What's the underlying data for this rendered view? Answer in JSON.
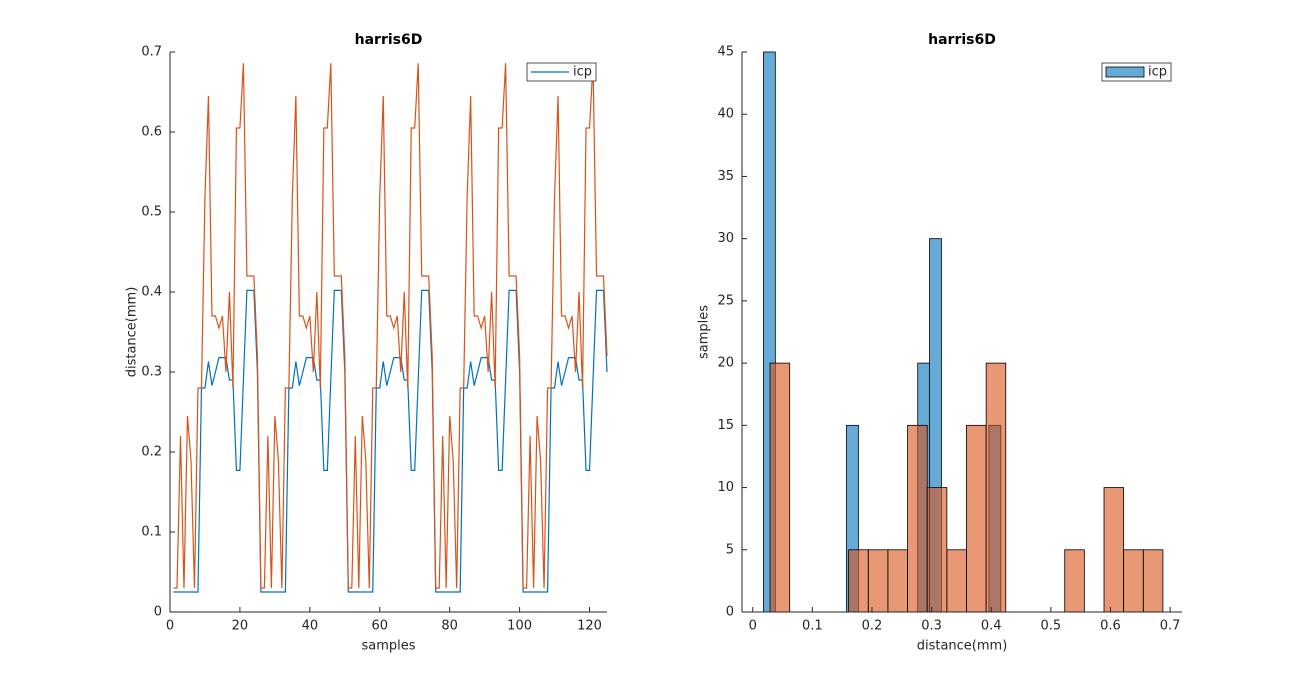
{
  "chart_data": [
    {
      "type": "line",
      "title": "harris6D",
      "x_label": "samples",
      "y_label": "distance(mm)",
      "xlim": [
        0,
        125
      ],
      "xticks": [
        0,
        20,
        40,
        60,
        80,
        100,
        120
      ],
      "ylim": [
        0,
        0.7
      ],
      "yticks": [
        0,
        0.1,
        0.2,
        0.3,
        0.4,
        0.5,
        0.6,
        0.7
      ],
      "legend": "top-right",
      "x": [
        1,
        2,
        3,
        4,
        5,
        6,
        7,
        8,
        9,
        10,
        11,
        12,
        13,
        14,
        15,
        16,
        17,
        18,
        19,
        20,
        21,
        22,
        23,
        24,
        25,
        26,
        27,
        28,
        29,
        30,
        31,
        32,
        33,
        34,
        35,
        36,
        37,
        38,
        39,
        40,
        41,
        42,
        43,
        44,
        45,
        46,
        47,
        48,
        49,
        50,
        51,
        52,
        53,
        54,
        55,
        56,
        57,
        58,
        59,
        60,
        61,
        62,
        63,
        64,
        65,
        66,
        67,
        68,
        69,
        70,
        71,
        72,
        73,
        74,
        75,
        76,
        77,
        78,
        79,
        80,
        81,
        82,
        83,
        84,
        85,
        86,
        87,
        88,
        89,
        90,
        91,
        92,
        93,
        94,
        95,
        96,
        97,
        98,
        99,
        100,
        101,
        102,
        103,
        104,
        105,
        106,
        107,
        108,
        109,
        110,
        111,
        112,
        113,
        114,
        115,
        116,
        117,
        118,
        119,
        120,
        121,
        122,
        123,
        124,
        125
      ],
      "series": [
        {
          "name": "icp",
          "color": "#0072bd",
          "values": [
            0.025,
            0.025,
            0.025,
            0.025,
            0.025,
            0.025,
            0.025,
            0.025,
            0.28,
            0.28,
            0.313,
            0.283,
            0.3,
            0.318,
            0.318,
            0.318,
            0.29,
            0.29,
            0.177,
            0.177,
            0.29,
            0.402,
            0.402,
            0.402,
            0.3,
            0.025,
            0.025,
            0.025,
            0.025,
            0.025,
            0.025,
            0.025,
            0.025,
            0.28,
            0.28,
            0.313,
            0.283,
            0.3,
            0.318,
            0.318,
            0.318,
            0.29,
            0.29,
            0.177,
            0.177,
            0.29,
            0.402,
            0.402,
            0.402,
            0.3,
            0.025,
            0.025,
            0.025,
            0.025,
            0.025,
            0.025,
            0.025,
            0.025,
            0.28,
            0.28,
            0.313,
            0.283,
            0.3,
            0.318,
            0.318,
            0.318,
            0.29,
            0.29,
            0.177,
            0.177,
            0.29,
            0.402,
            0.402,
            0.402,
            0.3,
            0.025,
            0.025,
            0.025,
            0.025,
            0.025,
            0.025,
            0.025,
            0.025,
            0.28,
            0.28,
            0.313,
            0.283,
            0.3,
            0.318,
            0.318,
            0.318,
            0.29,
            0.29,
            0.177,
            0.177,
            0.29,
            0.402,
            0.402,
            0.402,
            0.3,
            0.025,
            0.025,
            0.025,
            0.025,
            0.025,
            0.025,
            0.025,
            0.025,
            0.28,
            0.28,
            0.313,
            0.283,
            0.3,
            0.318,
            0.318,
            0.318,
            0.29,
            0.29,
            0.177,
            0.177,
            0.29,
            0.402,
            0.402,
            0.402,
            0.3
          ]
        },
        {
          "color": "#d95319",
          "values": [
            0.03,
            0.03,
            0.22,
            0.03,
            0.245,
            0.19,
            0.03,
            0.28,
            0.28,
            0.52,
            0.645,
            0.37,
            0.37,
            0.355,
            0.37,
            0.3,
            0.4,
            0.28,
            0.605,
            0.605,
            0.686,
            0.42,
            0.42,
            0.42,
            0.32,
            0.03,
            0.03,
            0.22,
            0.03,
            0.245,
            0.19,
            0.03,
            0.28,
            0.28,
            0.52,
            0.645,
            0.37,
            0.37,
            0.355,
            0.37,
            0.3,
            0.4,
            0.28,
            0.605,
            0.605,
            0.686,
            0.42,
            0.42,
            0.42,
            0.32,
            0.03,
            0.03,
            0.22,
            0.03,
            0.245,
            0.19,
            0.03,
            0.28,
            0.28,
            0.52,
            0.645,
            0.37,
            0.37,
            0.355,
            0.37,
            0.3,
            0.4,
            0.28,
            0.605,
            0.605,
            0.686,
            0.42,
            0.42,
            0.42,
            0.32,
            0.03,
            0.03,
            0.22,
            0.03,
            0.245,
            0.19,
            0.03,
            0.28,
            0.28,
            0.52,
            0.645,
            0.37,
            0.37,
            0.355,
            0.37,
            0.3,
            0.4,
            0.28,
            0.605,
            0.605,
            0.686,
            0.42,
            0.42,
            0.42,
            0.32,
            0.03,
            0.03,
            0.22,
            0.03,
            0.245,
            0.19,
            0.03,
            0.28,
            0.28,
            0.52,
            0.645,
            0.37,
            0.37,
            0.355,
            0.37,
            0.3,
            0.4,
            0.28,
            0.605,
            0.605,
            0.686,
            0.42,
            0.42,
            0.42,
            0.32
          ]
        }
      ]
    },
    {
      "type": "histogram",
      "title": "harris6D",
      "x_label": "distance(mm)",
      "y_label": "samples",
      "xlim": [
        -0.018,
        0.72
      ],
      "xticks": [
        0,
        0.1,
        0.2,
        0.3,
        0.4,
        0.5,
        0.6,
        0.7
      ],
      "ylim": [
        0,
        45
      ],
      "yticks": [
        0,
        5,
        10,
        15,
        20,
        25,
        30,
        35,
        40,
        45
      ],
      "legend": "top-right",
      "series": [
        {
          "name": "icp",
          "color": "#0072bd",
          "bins": [
            0.018,
            0.0379,
            0.0578,
            0.0777,
            0.0976,
            0.1175,
            0.1374,
            0.1573,
            0.1772,
            0.1971,
            0.217,
            0.2369,
            0.2568,
            0.2767,
            0.2966,
            0.3165,
            0.3364,
            0.3563,
            0.3762,
            0.3961,
            0.416
          ],
          "counts": [
            45,
            0,
            0,
            0,
            0,
            0,
            0,
            15,
            0,
            0,
            0,
            0,
            0,
            20,
            30,
            0,
            0,
            0,
            0,
            15
          ]
        },
        {
          "color": "#d95319",
          "bins": [
            0.029,
            0.062,
            0.0949,
            0.1279,
            0.1608,
            0.1938,
            0.2267,
            0.2597,
            0.2926,
            0.3256,
            0.3585,
            0.3915,
            0.4244,
            0.4574,
            0.4903,
            0.5233,
            0.5562,
            0.5892,
            0.6221,
            0.6551,
            0.688
          ],
          "counts": [
            20,
            0,
            0,
            0,
            5,
            5,
            5,
            15,
            10,
            5,
            15,
            20,
            0,
            0,
            0,
            5,
            0,
            10,
            5,
            5
          ]
        }
      ]
    }
  ]
}
